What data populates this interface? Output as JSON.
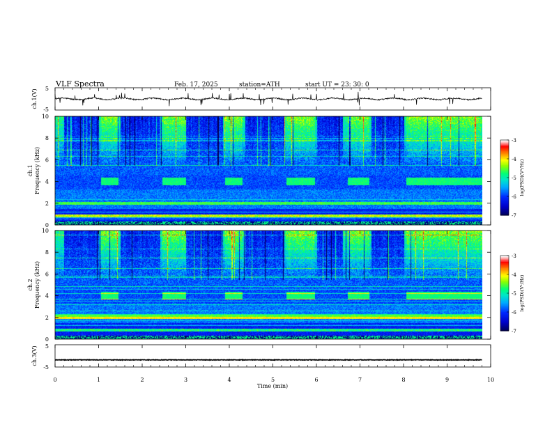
{
  "header": {
    "title": "VLF  Spectra",
    "date": "Feb. 17, 2025",
    "station": "station=ATH",
    "start": "start  UT  =   23: 30: 0"
  },
  "chart_data": [
    {
      "type": "line",
      "name": "ch1-waveform",
      "ylabel": "ch.1(V)",
      "ylim": [
        -5,
        5
      ],
      "yticks": [
        "5",
        "-5"
      ],
      "xlim": [
        0,
        10
      ],
      "approx_level": 0
    },
    {
      "type": "heatmap",
      "name": "ch1-spectrogram",
      "ylabel_top": "ch.1",
      "ylabel": "Frequency  (kHz)",
      "ylim": [
        0,
        10
      ],
      "yticks": [
        "0",
        "2",
        "4",
        "6",
        "8",
        "10"
      ],
      "xlim": [
        0,
        9.8
      ],
      "colorbar": {
        "label": "log(PSD)(V²/Hz)",
        "ticks": [
          "-3",
          "-4",
          "-5",
          "-6",
          "-7"
        ],
        "range": [
          -7,
          -3
        ]
      },
      "tone_bursts": [
        [
          1.05,
          1.45
        ],
        [
          2.45,
          3.0
        ],
        [
          3.9,
          4.3
        ],
        [
          5.3,
          5.95
        ],
        [
          6.7,
          7.2
        ],
        [
          8.05,
          9.8
        ]
      ],
      "tone_freq_khz": [
        3.7,
        4.4
      ]
    },
    {
      "type": "heatmap",
      "name": "ch2-spectrogram",
      "ylabel_top": "ch.2",
      "ylabel": "Frequency  (kHz)",
      "ylim": [
        0,
        10
      ],
      "yticks": [
        "0",
        "2",
        "4",
        "6",
        "8",
        "10"
      ],
      "xlim": [
        0,
        9.8
      ],
      "colorbar": {
        "label": "log(PSD)(V²/Hz)",
        "ticks": [
          "-3",
          "-4",
          "-5",
          "-6",
          "-7"
        ],
        "range": [
          -7,
          -3
        ]
      },
      "tone_bursts": [
        [
          1.05,
          1.45
        ],
        [
          2.45,
          3.0
        ],
        [
          3.9,
          4.3
        ],
        [
          5.3,
          5.95
        ],
        [
          6.7,
          7.2
        ],
        [
          8.05,
          9.8
        ]
      ],
      "tone_freq_khz": [
        3.7,
        4.4
      ]
    },
    {
      "type": "line",
      "name": "ch3-waveform",
      "ylabel": "ch.3(V)",
      "ylim": [
        -5,
        5
      ],
      "yticks": [
        "5",
        "-5"
      ],
      "xlim": [
        0,
        10
      ],
      "approx_level": -1.8
    }
  ],
  "xaxis": {
    "label": "Time  (min)",
    "ticks": [
      "0",
      "1",
      "2",
      "3",
      "4",
      "5",
      "6",
      "7",
      "8",
      "9",
      "10"
    ]
  },
  "colors": {
    "axis": "#000000",
    "colormap": [
      "#000070",
      "#0000ff",
      "#00c8ff",
      "#00ff80",
      "#80ff00",
      "#ffff00",
      "#ff8000",
      "#ff0000",
      "#ffb0b0",
      "#ffffff"
    ]
  }
}
